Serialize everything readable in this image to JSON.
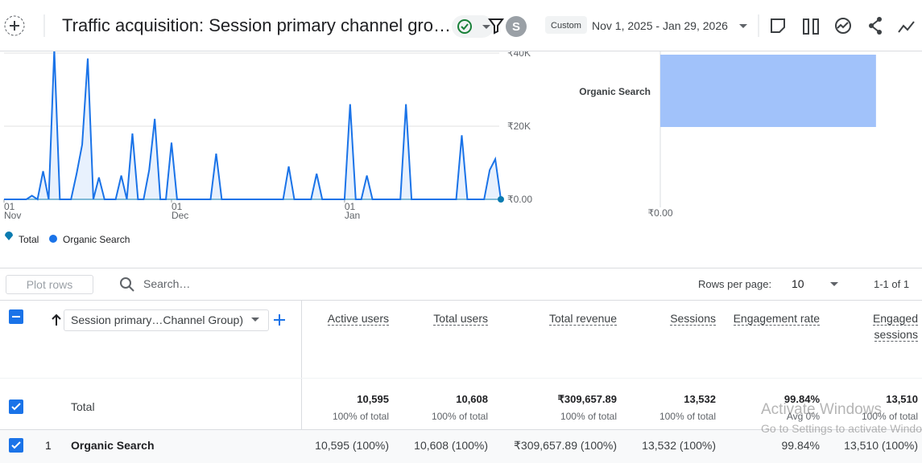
{
  "header": {
    "title": "Traffic acquisition: Session primary channel gro…",
    "avatar": "S",
    "date_badge": "Custom",
    "date_range": "Nov 1, 2025 - Jan 29, 2026"
  },
  "chart_data": [
    {
      "type": "line",
      "series": [
        {
          "name": "Total",
          "color": "#0b7bb0",
          "fill": "#e8f1fd",
          "values": [
            0,
            0,
            0,
            0,
            0,
            1000,
            0,
            7700,
            0,
            41000,
            0,
            0,
            0,
            7000,
            15000,
            38500,
            0,
            6000,
            0,
            0,
            0,
            6500,
            0,
            18000,
            0,
            0,
            8000,
            22000,
            0,
            0,
            15500,
            0,
            0,
            0,
            0,
            0,
            0,
            0,
            12500,
            0,
            0,
            0,
            0,
            0,
            0,
            0,
            0,
            0,
            0,
            0,
            0,
            9000,
            0,
            0,
            0,
            0,
            7000,
            0,
            0,
            0,
            0,
            0,
            26000,
            0,
            0,
            6500,
            0,
            0,
            0,
            0,
            0,
            0,
            26000,
            0,
            0,
            0,
            0,
            0,
            0,
            0,
            0,
            0,
            17500,
            0,
            0,
            0,
            0,
            8000,
            11000,
            0
          ]
        },
        {
          "name": "Organic Search",
          "color": "#1a73e8",
          "values": [
            0,
            0,
            0,
            0,
            0,
            1000,
            0,
            7700,
            0,
            41000,
            0,
            0,
            0,
            7000,
            15000,
            38500,
            0,
            6000,
            0,
            0,
            0,
            6500,
            0,
            18000,
            0,
            0,
            8000,
            22000,
            0,
            0,
            15500,
            0,
            0,
            0,
            0,
            0,
            0,
            0,
            12500,
            0,
            0,
            0,
            0,
            0,
            0,
            0,
            0,
            0,
            0,
            0,
            0,
            9000,
            0,
            0,
            0,
            0,
            7000,
            0,
            0,
            0,
            0,
            0,
            26000,
            0,
            0,
            6500,
            0,
            0,
            0,
            0,
            0,
            0,
            26000,
            0,
            0,
            0,
            0,
            0,
            0,
            0,
            0,
            0,
            17500,
            0,
            0,
            0,
            0,
            8000,
            11000,
            0
          ]
        }
      ],
      "xlim": [
        0,
        89
      ],
      "xticks": [
        {
          "value": 0,
          "label": "01"
        },
        {
          "value": 30,
          "label": "01"
        },
        {
          "value": 61,
          "label": "01"
        }
      ],
      "xtick_months": [
        "Nov",
        "Dec",
        "Jan"
      ],
      "ylim": [
        0,
        40000
      ],
      "yticks": [
        {
          "value": 0,
          "label": "₹0.00"
        },
        {
          "value": 20000,
          "label": "₹20K"
        },
        {
          "value": 40000,
          "label": "₹40K"
        }
      ],
      "grid": true,
      "legend": "bottom-left"
    },
    {
      "type": "bar",
      "orientation": "horizontal",
      "categories": [
        "Organic Search"
      ],
      "values": [
        309657.89
      ],
      "color": "#a1c2fa",
      "xlim": [
        0,
        400000
      ],
      "xticks": [
        {
          "value": 0,
          "label": "₹0.00"
        }
      ]
    }
  ],
  "toolbar": {
    "plot_rows": "Plot rows",
    "search_placeholder": "Search…",
    "rows_per_page_label": "Rows per page:",
    "rows_per_page": "10",
    "pagination": "1-1 of 1"
  },
  "table": {
    "dimension": "Session primary…Channel Group)",
    "columns": [
      "Active users",
      "Total users",
      "Total revenue",
      "Sessions",
      "Engagement rate",
      "Engaged sessions"
    ],
    "total": {
      "label": "Total",
      "values": [
        "10,595",
        "10,608",
        "₹309,657.89",
        "13,532",
        "99.84%",
        "13,510"
      ],
      "subs": [
        "100% of total",
        "100% of total",
        "100% of total",
        "100% of total",
        "Avg 0%",
        "100% of total"
      ]
    },
    "rows": [
      {
        "index": "1",
        "name": "Organic Search",
        "cells": [
          "10,595 (100%)",
          "10,608 (100%)",
          "₹309,657.89 (100%)",
          "13,532 (100%)",
          "99.84%",
          "13,510 (100%)"
        ]
      }
    ]
  },
  "watermark": {
    "title": "Activate Windows",
    "subtitle": "Go to Settings to activate Windows."
  }
}
